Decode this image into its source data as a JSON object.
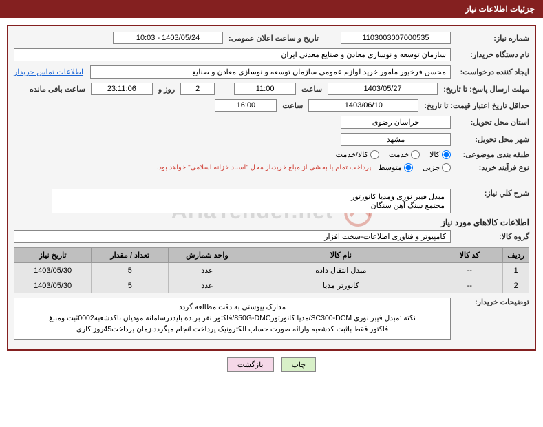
{
  "header": {
    "title": "جزئیات اطلاعات نیاز"
  },
  "form": {
    "need_number": {
      "label": "شماره نیاز:",
      "value": "1103003007000535"
    },
    "announce_date": {
      "label": "تاریخ و ساعت اعلان عمومی:",
      "value": "1403/05/24 - 10:03"
    },
    "buyer_org": {
      "label": "نام دستگاه خریدار:",
      "value": "سازمان توسعه و نوسازی معادن و صنایع معدنی ایران"
    },
    "requester": {
      "label": "ایجاد کننده درخواست:",
      "value": "محسن فرخپور مامور خرید لوازم عمومی سازمان توسعه و نوسازی معادن و صنایع",
      "link": "اطلاعات تماس خریدار"
    },
    "deadline_reply": {
      "label": "مهلت ارسال پاسخ: تا تاریخ:",
      "date": "1403/05/27",
      "time_label": "ساعت",
      "time": "11:00",
      "days": "2",
      "days_label": "روز و",
      "remaining": "23:11:06",
      "remaining_label": "ساعت باقی مانده"
    },
    "price_validity": {
      "label": "حداقل تاریخ اعتبار قیمت: تا تاریخ:",
      "date": "1403/06/10",
      "time_label": "ساعت",
      "time": "16:00"
    },
    "delivery_province": {
      "label": "استان محل تحویل:",
      "value": "خراسان رضوی"
    },
    "delivery_city": {
      "label": "شهر محل تحویل:",
      "value": "مشهد"
    },
    "category": {
      "label": "طبقه بندی موضوعی:",
      "options": [
        {
          "label": "کالا",
          "checked": true
        },
        {
          "label": "خدمت",
          "checked": false
        },
        {
          "label": "کالا/خدمت",
          "checked": false
        }
      ]
    },
    "process_type": {
      "label": "نوع فرآیند خرید:",
      "options": [
        {
          "label": "جزیی",
          "checked": false
        },
        {
          "label": "متوسط",
          "checked": true
        }
      ],
      "note": "پرداخت تمام یا بخشی از مبلغ خرید،از محل \"اسناد خزانه اسلامی\" خواهد بود."
    },
    "description": {
      "label": "شرح کلي نیاز:",
      "value": "مبدل فیبر نوری ومدیا کانورتور\nمجتمع سنگ آهن سنگان"
    },
    "info_title": "اطلاعات کالاهای مورد نیاز",
    "goods_group": {
      "label": "گروه کالا:",
      "value": "کامپیوتر و فناوری اطلاعات-سخت افزار"
    },
    "buyer_notes": {
      "label": "توضیحات خریدار:",
      "lines": [
        "مدارک پیوستی به دقت مطالعه گردد",
        "نکته :مبدل فیبر نوری SC300-DCM/مدیا کانورتور850G-DMC/فاکتور نفر برنده بایددرسامانه مودیان باکدشعبه0002ثبت ومبلغ",
        "فاکتور فقط باثبت کدشعبه وارائه صورت حساب الکترونیک پرداخت انجام میگردد.زمان پرداخت45روز کاری"
      ]
    }
  },
  "table": {
    "columns": [
      "ردیف",
      "کد کالا",
      "نام کالا",
      "واحد شمارش",
      "تعداد / مقدار",
      "تاریخ نیاز"
    ],
    "widths": [
      "5%",
      "13%",
      "37%",
      "15%",
      "15%",
      "15%"
    ],
    "rows": [
      [
        "1",
        "--",
        "مبدل انتقال داده",
        "عدد",
        "5",
        "1403/05/30"
      ],
      [
        "2",
        "--",
        "کانورتر مدیا",
        "عدد",
        "5",
        "1403/05/30"
      ]
    ]
  },
  "buttons": {
    "print": "چاپ",
    "back": "بازگشت"
  },
  "watermark": "AriaTender.net"
}
